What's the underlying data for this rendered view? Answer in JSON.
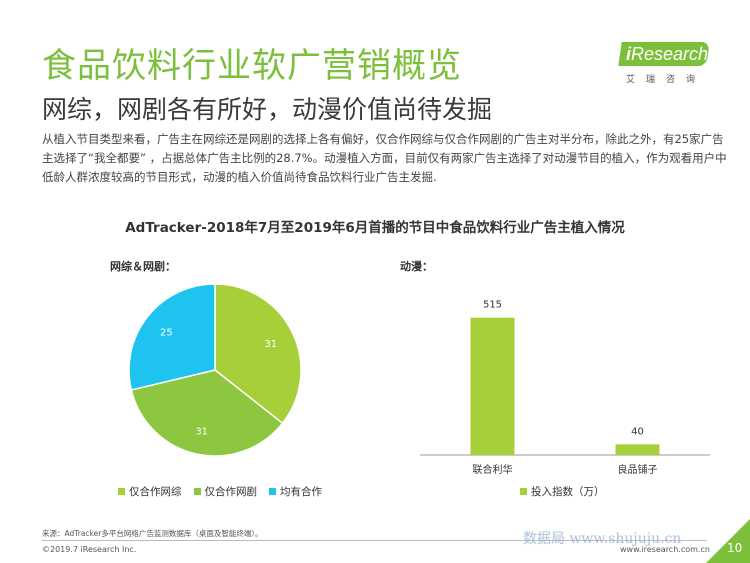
{
  "header": {
    "title": "食品饮料行业软广营销概览",
    "subtitle": "网综，网剧各有所好，动漫价值尚待发掘",
    "description": "从植入节目类型来看，广告主在网综还是网剧的选择上各有偏好，仅合作网综与仅合作网剧的广告主对半分布，除此之外，有25家广告主选择了“我全都要” ，占据总体广告主比例的28.7%。动漫植入方面，目前仅有两家广告主选择了对动漫节目的植入，作为观看用户中低龄人群浓度较高的节目形式，动漫的植入价值尚待食品饮料行业广告主发掘."
  },
  "logo": {
    "text_i": "i",
    "text_rest": "Research",
    "sub": "艾瑞咨询"
  },
  "colors": {
    "accent": "#7bbf3a",
    "light_green": "#a6cf39",
    "mid_green": "#8dc63f",
    "cyan": "#1fc3ef"
  },
  "chart_title": "AdTracker-2018年7月至2019年6月首播的节目中食品饮料行业广告主植入情况",
  "chart_data": [
    {
      "type": "pie",
      "title": "网综＆网剧：",
      "series": [
        {
          "name": "仅合作网综",
          "value": 31,
          "color": "#a6cf39"
        },
        {
          "name": "仅合作网剧",
          "value": 31,
          "color": "#8dc63f"
        },
        {
          "name": "均有合作",
          "value": 25,
          "color": "#1fc3ef"
        }
      ],
      "legend": "bottom"
    },
    {
      "type": "bar",
      "title": "动漫：",
      "categories": [
        "联合利华",
        "良品铺子"
      ],
      "series": [
        {
          "name": "投入指数（万）",
          "values": [
            515,
            40
          ],
          "color": "#a6cf39"
        }
      ],
      "ylim": [
        0,
        600
      ],
      "legend": "bottom"
    }
  ],
  "footer": {
    "source": "来源：AdTracker多平台网络广告监测数据库（桌面及智能终端）。",
    "copyright": "©2019.7 iResearch Inc.",
    "website": "www.iresearch.com.cn",
    "watermark": "数据局 www.shujuju.cn",
    "page": "10"
  }
}
